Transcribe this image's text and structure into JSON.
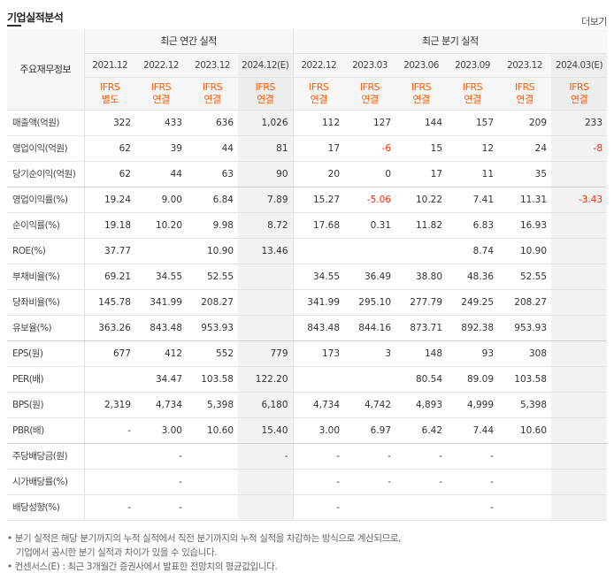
{
  "section": {
    "title": "기업실적분석",
    "more_label": "더보기"
  },
  "header": {
    "row_label": "주요재무정보",
    "annual_group": "최근 연간 실적",
    "quarter_group": "최근 분기 실적",
    "periods": [
      "2021.12",
      "2022.12",
      "2023.12",
      "2024.12(E)",
      "2022.12",
      "2023.03",
      "2023.06",
      "2023.09",
      "2023.12",
      "2024.03(E)"
    ],
    "ifrs": [
      "IFRS",
      "IFRS",
      "IFRS",
      "IFRS",
      "IFRS",
      "IFRS",
      "IFRS",
      "IFRS",
      "IFRS",
      "IFRS"
    ],
    "ifrs_type": [
      "별도",
      "연결",
      "연결",
      "연결",
      "연결",
      "연결",
      "연결",
      "연결",
      "연결",
      "연결"
    ]
  },
  "rows": [
    {
      "label": "매출액(억원)",
      "values": [
        "322",
        "433",
        "636",
        "1,026",
        "112",
        "127",
        "144",
        "157",
        "209",
        "233"
      ]
    },
    {
      "label": "영업이익(억원)",
      "values": [
        "62",
        "39",
        "44",
        "81",
        "17",
        "-6",
        "15",
        "12",
        "24",
        "-8"
      ]
    },
    {
      "label": "당기순이익(억원)",
      "values": [
        "62",
        "44",
        "63",
        "90",
        "20",
        "0",
        "17",
        "11",
        "35",
        ""
      ]
    },
    {
      "label": "영업이익률(%)",
      "values": [
        "19.24",
        "9.00",
        "6.84",
        "7.89",
        "15.27",
        "-5.06",
        "10.22",
        "7.41",
        "11.31",
        "-3.43"
      ]
    },
    {
      "label": "순이익률(%)",
      "values": [
        "19.18",
        "10.20",
        "9.98",
        "8.72",
        "17.68",
        "0.31",
        "11.82",
        "6.83",
        "16.93",
        ""
      ]
    },
    {
      "label": "ROE(%)",
      "values": [
        "37.77",
        "",
        "10.90",
        "13.46",
        "",
        "",
        "",
        "8.74",
        "10.90",
        ""
      ]
    },
    {
      "label": "부채비율(%)",
      "values": [
        "69.21",
        "34.55",
        "52.55",
        "",
        "34.55",
        "36.49",
        "38.80",
        "48.36",
        "52.55",
        ""
      ]
    },
    {
      "label": "당좌비율(%)",
      "values": [
        "145.78",
        "341.99",
        "208.27",
        "",
        "341.99",
        "295.10",
        "277.79",
        "249.25",
        "208.27",
        ""
      ]
    },
    {
      "label": "유보율(%)",
      "values": [
        "363.26",
        "843.48",
        "953.93",
        "",
        "843.48",
        "844.16",
        "873.71",
        "892.38",
        "953.93",
        ""
      ]
    },
    {
      "label": "EPS(원)",
      "values": [
        "677",
        "412",
        "552",
        "779",
        "173",
        "3",
        "148",
        "93",
        "308",
        ""
      ]
    },
    {
      "label": "PER(배)",
      "values": [
        "",
        "34.47",
        "103.58",
        "122.20",
        "",
        "",
        "80.54",
        "89.09",
        "103.58",
        ""
      ]
    },
    {
      "label": "BPS(원)",
      "values": [
        "2,319",
        "4,734",
        "5,398",
        "6,180",
        "4,734",
        "4,742",
        "4,893",
        "4,999",
        "5,398",
        ""
      ]
    },
    {
      "label": "PBR(배)",
      "values": [
        "-",
        "3.00",
        "10.60",
        "15.40",
        "3.00",
        "6.97",
        "6.42",
        "7.44",
        "10.60",
        ""
      ]
    },
    {
      "label": "주당배당금(원)",
      "values": [
        "",
        "-",
        "",
        "-",
        "-",
        "-",
        "-",
        "-",
        "",
        ""
      ]
    },
    {
      "label": "시가배당률(%)",
      "values": [
        "",
        "-",
        "",
        "",
        "-",
        "-",
        "-",
        "-",
        "",
        ""
      ]
    },
    {
      "label": "배당성향(%)",
      "values": [
        "-",
        "-",
        "",
        "",
        "-",
        "",
        "",
        "-",
        "",
        ""
      ]
    }
  ],
  "notes": {
    "line1": "분기 실적은 해당 분기까지의 누적 실적에서 직전 분기까지의 누적 실적을 차감하는 방식으로 계산되므로,",
    "line2": "기업에서 공시한 분기 실적과 차이가 있을 수 있습니다.",
    "line3": "컨센서스(E) : 최근 3개월간 증권사에서 발표한 전망치의 평균값입니다."
  },
  "colors": {
    "ifrs": "#ff5a00",
    "negative": "#ff2a00",
    "estimate_bg": "#f2f2f2"
  }
}
